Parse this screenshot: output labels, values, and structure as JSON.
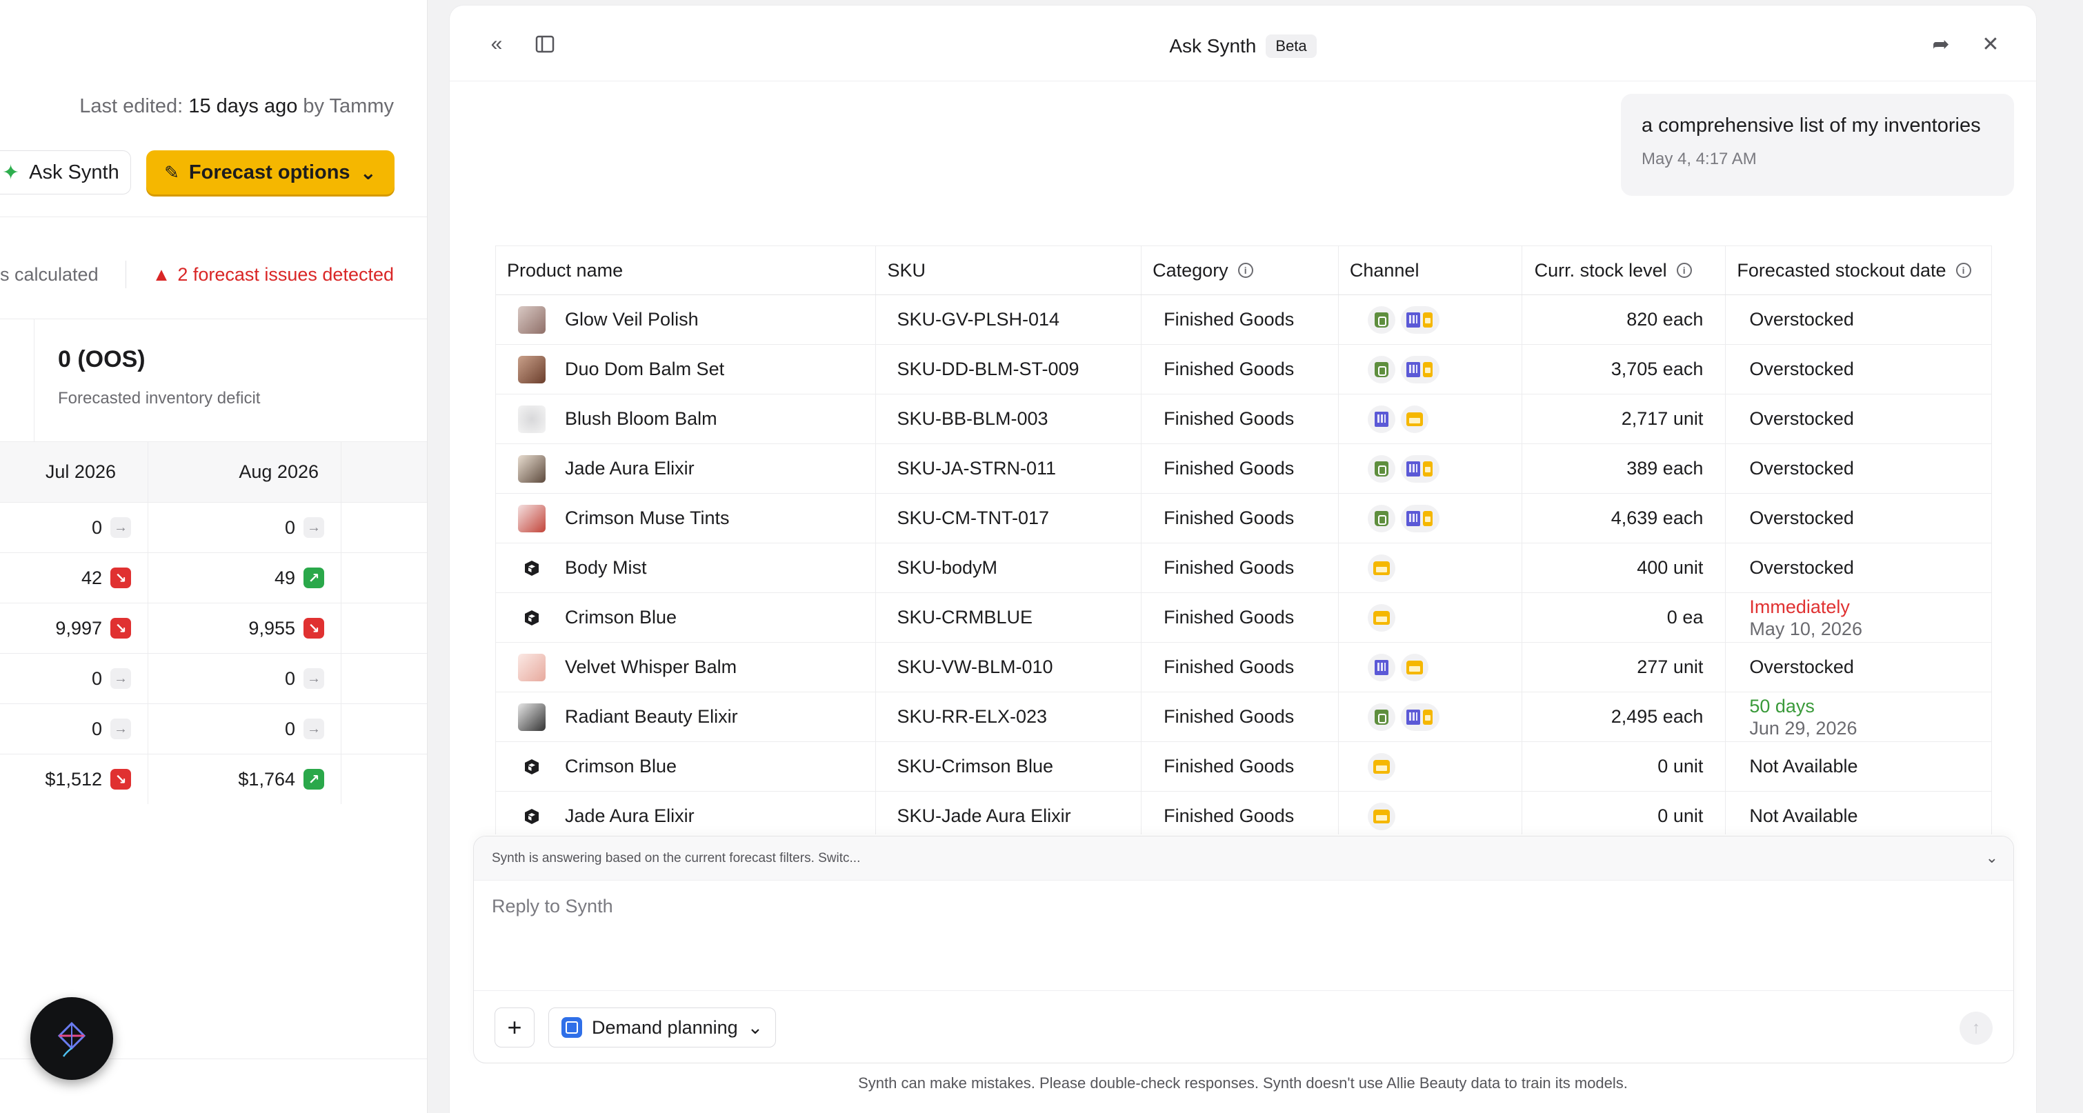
{
  "left": {
    "edited_prefix": "Last edited:",
    "edited_when": "15 days ago",
    "edited_by": "by Tammy",
    "ask_synth": "Ask Synth",
    "forecast_options": "Forecast options",
    "calculated": "s calculated",
    "issues": "2 forecast issues detected",
    "oos_value": "0 (OOS)",
    "oos_label": "Forecasted inventory deficit",
    "columns": [
      "Jul 2026",
      "Aug 2026"
    ],
    "rows": [
      {
        "jul": "0",
        "jul_trend": "flat",
        "aug": "0",
        "aug_trend": "flat"
      },
      {
        "jul": "42",
        "jul_trend": "down",
        "aug": "49",
        "aug_trend": "up"
      },
      {
        "jul": "9,997",
        "jul_trend": "down",
        "aug": "9,955",
        "aug_trend": "down"
      },
      {
        "jul": "0",
        "jul_trend": "flat",
        "aug": "0",
        "aug_trend": "flat"
      },
      {
        "jul": "0",
        "jul_trend": "flat",
        "aug": "0",
        "aug_trend": "flat"
      },
      {
        "jul": "$1,512",
        "jul_trend": "down",
        "aug": "$1,764",
        "aug_trend": "up"
      }
    ]
  },
  "panel": {
    "title": "Ask Synth",
    "badge": "Beta",
    "user_message": "a comprehensive list of my inventories",
    "user_time": "May 4, 4:17 AM",
    "table": {
      "headers": [
        "Product name",
        "SKU",
        "Category",
        "Channel",
        "Curr. stock level",
        "Forecasted stockout date"
      ],
      "rows": [
        {
          "name": "Glow Veil Polish",
          "sku": "SKU-GV-PLSH-014",
          "category": "Finished Goods",
          "channels": [
            "shopify",
            "building-store"
          ],
          "stock": "820 each",
          "date": "Overstocked",
          "thumb": "photo"
        },
        {
          "name": "Duo Dom Balm Set",
          "sku": "SKU-DD-BLM-ST-009",
          "category": "Finished Goods",
          "channels": [
            "shopify",
            "building-store"
          ],
          "stock": "3,705 each",
          "date": "Overstocked",
          "thumb": "photo2"
        },
        {
          "name": "Blush Bloom Balm",
          "sku": "SKU-BB-BLM-003",
          "category": "Finished Goods",
          "channels": [
            "building",
            "store"
          ],
          "stock": "2,717 unit",
          "date": "Overstocked",
          "thumb": "photo3"
        },
        {
          "name": "Jade Aura Elixir",
          "sku": "SKU-JA-STRN-011",
          "category": "Finished Goods",
          "channels": [
            "shopify",
            "building-store"
          ],
          "stock": "389 each",
          "date": "Overstocked",
          "thumb": "photo4"
        },
        {
          "name": "Crimson Muse Tints",
          "sku": "SKU-CM-TNT-017",
          "category": "Finished Goods",
          "channels": [
            "shopify",
            "building-store"
          ],
          "stock": "4,639 each",
          "date": "Overstocked",
          "thumb": "photo5"
        },
        {
          "name": "Body Mist",
          "sku": "SKU-bodyM",
          "category": "Finished Goods",
          "channels": [
            "store"
          ],
          "stock": "400 unit",
          "date": "Overstocked",
          "thumb": "cube"
        },
        {
          "name": "Crimson Blue",
          "sku": "SKU-CRMBLUE",
          "category": "Finished Goods",
          "channels": [
            "store"
          ],
          "stock": "0 ea",
          "date": "Immediately",
          "date2": "May 10, 2026",
          "date_color": "red",
          "thumb": "cube"
        },
        {
          "name": "Velvet Whisper Balm",
          "sku": "SKU-VW-BLM-010",
          "category": "Finished Goods",
          "channels": [
            "building",
            "store"
          ],
          "stock": "277 unit",
          "date": "Overstocked",
          "thumb": "photo6"
        },
        {
          "name": "Radiant Beauty Elixir",
          "sku": "SKU-RR-ELX-023",
          "category": "Finished Goods",
          "channels": [
            "shopify",
            "building-store"
          ],
          "stock": "2,495 each",
          "date": "50 days",
          "date2": "Jun 29, 2026",
          "date_color": "green",
          "thumb": "photo7"
        },
        {
          "name": "Crimson Blue",
          "sku": "SKU-Crimson Blue",
          "category": "Finished Goods",
          "channels": [
            "store"
          ],
          "stock": "0 unit",
          "date": "Not Available",
          "thumb": "cube"
        },
        {
          "name": "Jade Aura Elixir",
          "sku": "SKU-Jade Aura Elixir",
          "category": "Finished Goods",
          "channels": [
            "store"
          ],
          "stock": "0 unit",
          "date": "Not Available",
          "thumb": "cube"
        }
      ]
    },
    "composer": {
      "notice": "Synth is answering based on the current forecast filters. Switc...",
      "placeholder": "Reply to Synth",
      "mode": "Demand planning"
    },
    "disclaimer": "Synth can make mistakes. Please double-check responses. Synth doesn't use Allie Beauty data to train its models."
  },
  "colors": {
    "accent": "#f5b700",
    "danger": "#e03131",
    "success": "#2aa84a",
    "shopify": "#5e8e3e",
    "building": "#5b59d6"
  },
  "icons": [
    "collapse-left-icon",
    "sidebar-icon",
    "share-icon",
    "close-icon",
    "sparkle-icon",
    "pencil-icon",
    "chevron-down-icon",
    "warning-icon",
    "info-icon",
    "plus-icon",
    "send-icon",
    "kite-icon"
  ]
}
